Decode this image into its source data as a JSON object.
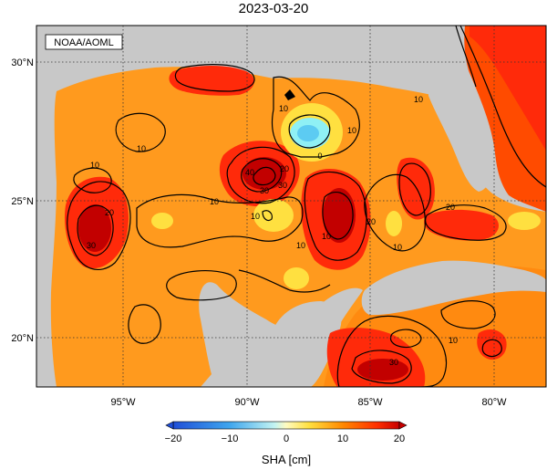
{
  "title": "2023-03-20",
  "credit": "NOAA/AOML",
  "lat_labels": [
    "30°N",
    "25°N",
    "20°N"
  ],
  "lon_labels": [
    "95°W",
    "90°W",
    "85°W",
    "80°W"
  ],
  "contour_labels": {
    "c1": "10",
    "c2": "10",
    "c3": "10",
    "c4": "10",
    "c5": "20",
    "c6": "30",
    "c7": "10",
    "c8": "30",
    "c9": "40",
    "c10": "30",
    "c11": "20",
    "c12": "10",
    "c13": "0",
    "c14": "10",
    "c15": "20",
    "c16": "10",
    "c17": "20",
    "c18": "10",
    "c19": "10",
    "c20": "10",
    "c21": "30"
  },
  "colorbar": {
    "label": "SHA [cm]",
    "ticks": [
      "−20",
      "−10",
      "0",
      "10",
      "20"
    ],
    "min": -20,
    "max": 20,
    "colors": [
      "#1f4fd8",
      "#2f7fe6",
      "#3fa6ee",
      "#5ccbf2",
      "#8fe6f3",
      "#c4f4f2",
      "#fffbc0",
      "#fff07a",
      "#ffe040",
      "#ffc000",
      "#ffa32a",
      "#ff8800",
      "#ff6a00",
      "#ff4b00",
      "#ee1a00",
      "#c80000"
    ]
  },
  "colors": {
    "land": "#c8c8c8",
    "sea_base": "#ff9a1e",
    "high": "#ff2a0a",
    "very_high": "#c20000",
    "low": "#8ff0f5"
  }
}
